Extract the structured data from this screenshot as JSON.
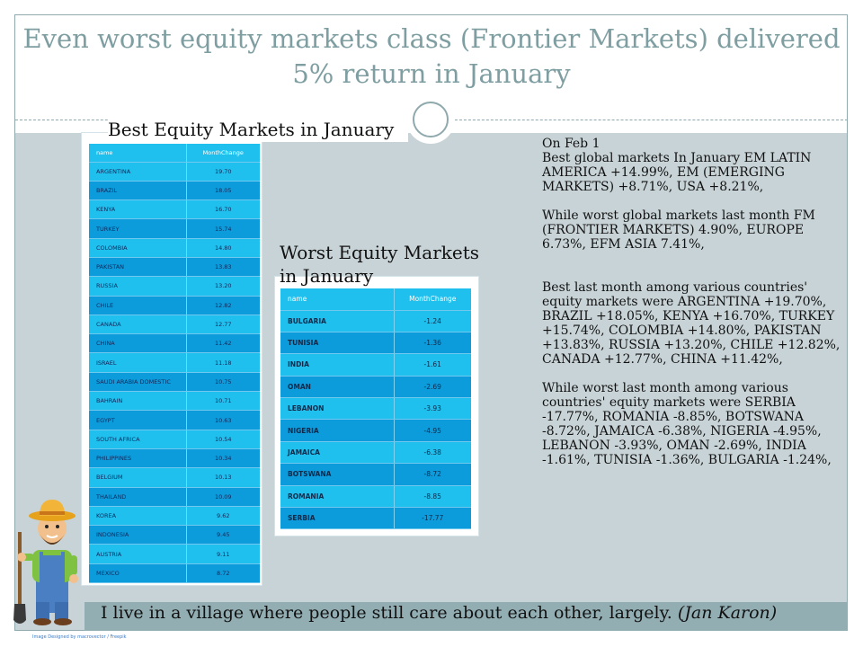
{
  "slide_title": "Even worst equity markets class (Frontier Markets) delivered 5% return in January",
  "best_table": {
    "title": "Best Equity Markets in January",
    "headers": [
      "name",
      "MonthChange"
    ],
    "rows": [
      [
        "ARGENTINA",
        "19.70"
      ],
      [
        "BRAZIL",
        "18.05"
      ],
      [
        "KENYA",
        "16.70"
      ],
      [
        "TURKEY",
        "15.74"
      ],
      [
        "COLOMBIA",
        "14.80"
      ],
      [
        "PAKISTAN",
        "13.83"
      ],
      [
        "RUSSIA",
        "13.20"
      ],
      [
        "CHILE",
        "12.82"
      ],
      [
        "CANADA",
        "12.77"
      ],
      [
        "CHINA",
        "11.42"
      ],
      [
        "ISRAEL",
        "11.18"
      ],
      [
        "SAUDI ARABIA DOMESTIC",
        "10.75"
      ],
      [
        "BAHRAIN",
        "10.71"
      ],
      [
        "EGYPT",
        "10.63"
      ],
      [
        "SOUTH AFRICA",
        "10.54"
      ],
      [
        "PHILIPPINES",
        "10.34"
      ],
      [
        "BELGIUM",
        "10.13"
      ],
      [
        "THAILAND",
        "10.09"
      ],
      [
        "KOREA",
        "9.62"
      ],
      [
        "INDONESIA",
        "9.45"
      ],
      [
        "AUSTRIA",
        "9.11"
      ],
      [
        "MEXICO",
        "8.72"
      ]
    ]
  },
  "worst_table": {
    "title": "Worst Equity Markets in January",
    "headers": [
      "name",
      "MonthChange"
    ],
    "rows": [
      [
        "BULGARIA",
        "-1.24"
      ],
      [
        "TUNISIA",
        "-1.36"
      ],
      [
        "INDIA",
        "-1.61"
      ],
      [
        "OMAN",
        "-2.69"
      ],
      [
        "LEBANON",
        "-3.93"
      ],
      [
        "NIGERIA",
        "-4.95"
      ],
      [
        "JAMAICA",
        "-6.38"
      ],
      [
        "BOTSWANA",
        "-8.72"
      ],
      [
        "ROMANIA",
        "-8.85"
      ],
      [
        "SERBIA",
        "-17.77"
      ]
    ]
  },
  "commentary": {
    "date": "On Feb 1",
    "p1": "Best global markets In January EM LATIN AMERICA +14.99%, EM (EMERGING MARKETS) +8.71%, USA +8.21%,",
    "p2": "While worst global markets last month FM (FRONTIER MARKETS) 4.90%, EUROPE 6.73%, EFM ASIA 7.41%,",
    "p3": "Best last month among various countries' equity markets were ARGENTINA +19.70%, BRAZIL +18.05%, KENYA +16.70%, TURKEY +15.74%, COLOMBIA +14.80%, PAKISTAN +13.83%, RUSSIA +13.20%, CHILE +12.82%, CANADA +12.77%, CHINA +11.42%,",
    "p4": "While worst last month among various countries' equity markets were SERBIA -17.77%, ROMANIA -8.85%, BOTSWANA -8.72%, JAMAICA -6.38%, NIGERIA -4.95%, LEBANON -3.93%, OMAN -2.69%, INDIA -1.61%, TUNISIA -1.36%, BULGARIA -1.24%,"
  },
  "quote": {
    "text": "I live in a village where people still care about each other, largely.",
    "author": "(Jan Karon)"
  },
  "credit": "Image Designed by macrovector / Freepik",
  "colors": {
    "title": "#7e9ea1",
    "band": "#c8d3d7",
    "row_dark": "#0c9cdc",
    "row_light": "#1fc0ee",
    "quote_bar": "#92aeb3"
  }
}
